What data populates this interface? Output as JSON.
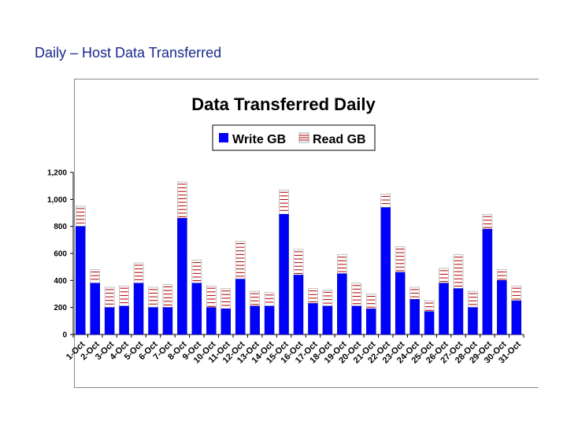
{
  "slide": {
    "title": "Daily – Host Data Transferred"
  },
  "colors": {
    "write": "#0000ff",
    "read_fill": "#ffffff",
    "read_stripe": "#b00000",
    "title": "#1a2a8a"
  },
  "chart_data": {
    "type": "bar",
    "stacked": true,
    "title": "Data Transferred Daily",
    "categories": [
      "1-Oct",
      "2-Oct",
      "3-Oct",
      "4-Oct",
      "5-Oct",
      "6-Oct",
      "7-Oct",
      "8-Oct",
      "9-Oct",
      "10-Oct",
      "11-Oct",
      "12-Oct",
      "13-Oct",
      "14-Oct",
      "15-Oct",
      "16-Oct",
      "17-Oct",
      "18-Oct",
      "19-Oct",
      "20-Oct",
      "21-Oct",
      "22-Oct",
      "23-Oct",
      "24-Oct",
      "25-Oct",
      "26-Oct",
      "27-Oct",
      "28-Oct",
      "29-Oct",
      "30-Oct",
      "31-Oct"
    ],
    "series": [
      {
        "name": "Write GB",
        "values": [
          800,
          380,
          200,
          210,
          380,
          200,
          200,
          860,
          380,
          200,
          190,
          410,
          210,
          210,
          890,
          440,
          230,
          210,
          450,
          210,
          190,
          940,
          460,
          260,
          170,
          380,
          340,
          200,
          780,
          400,
          250
        ]
      },
      {
        "name": "Read GB",
        "values": [
          150,
          100,
          150,
          150,
          150,
          150,
          170,
          270,
          170,
          160,
          150,
          280,
          110,
          100,
          180,
          190,
          110,
          120,
          140,
          170,
          110,
          100,
          190,
          90,
          80,
          110,
          250,
          120,
          110,
          80,
          110
        ]
      }
    ],
    "ylim": [
      0,
      1200
    ],
    "yticks": [
      0,
      200,
      400,
      600,
      800,
      1000,
      1200
    ],
    "ytick_labels": [
      "0",
      "200",
      "400",
      "600",
      "800",
      "1,000",
      "1,200"
    ],
    "legend": {
      "position": "top-center",
      "entries": [
        "Write GB",
        "Read GB"
      ]
    },
    "grid": false
  }
}
